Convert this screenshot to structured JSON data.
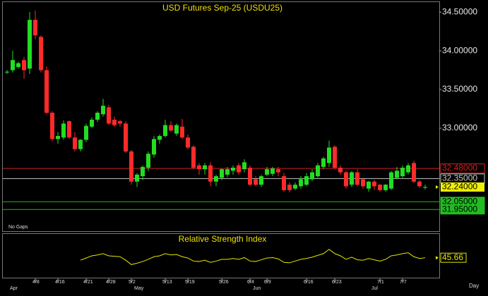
{
  "chart_data": {
    "type": "candlestick",
    "title": "USD Futures Sep-25 (USDU25)",
    "note": "No Gaps",
    "x_unit": "Day",
    "categories": [
      null,
      null,
      null,
      null,
      null,
      "4/8",
      null,
      null,
      null,
      "4/16",
      null,
      null,
      null,
      null,
      "4/21",
      null,
      null,
      null,
      "4/28",
      null,
      null,
      null,
      "5/2",
      null,
      null,
      null,
      null,
      null,
      "5/13",
      null,
      null,
      null,
      "5/19",
      null,
      null,
      null,
      null,
      null,
      "5/26",
      null,
      null,
      null,
      null,
      "6/4",
      null,
      null,
      "6/9",
      null,
      null,
      null,
      null,
      null,
      null,
      "6/16",
      null,
      null,
      null,
      null,
      "6/23",
      null,
      null,
      null,
      null,
      null,
      null,
      null,
      "7/1",
      null,
      null,
      null,
      "7/7",
      null,
      null,
      null,
      null
    ],
    "months": [
      "Apr",
      null,
      null,
      null,
      null,
      null,
      null,
      null,
      null,
      null,
      null,
      null,
      null,
      null,
      null,
      null,
      null,
      null,
      null,
      null,
      null,
      null,
      "May",
      null,
      null,
      null,
      null,
      null,
      null,
      null,
      null,
      null,
      null,
      null,
      null,
      null,
      null,
      null,
      null,
      null,
      null,
      null,
      null,
      "Jun",
      null,
      null,
      null,
      null,
      null,
      null,
      null,
      null,
      null,
      null,
      null,
      null,
      null,
      null,
      null,
      null,
      null,
      null,
      null,
      null,
      "Jul",
      null,
      null,
      null,
      null,
      null,
      null,
      null,
      null,
      null
    ],
    "open": [
      33.72,
      33.75,
      33.79,
      33.88,
      33.77,
      34.4,
      34.18,
      33.75,
      33.2,
      32.86,
      32.88,
      33.09,
      32.88,
      32.73,
      32.85,
      33.02,
      33.11,
      33.18,
      33.27,
      33.11,
      33.09,
      33.06,
      32.7,
      32.31,
      32.38,
      32.49,
      32.66,
      32.85,
      32.9,
      33.04,
      32.93,
      33.02,
      32.88,
      32.76,
      32.52,
      32.47,
      32.52,
      32.31,
      32.36,
      32.4,
      32.45,
      32.52,
      32.47,
      32.49,
      32.34,
      32.27,
      32.4,
      32.41,
      32.47,
      32.38,
      32.27,
      32.22,
      32.25,
      32.27,
      32.34,
      32.38,
      32.5,
      32.55,
      32.76,
      32.49,
      32.43,
      32.27,
      32.43,
      32.34,
      32.22,
      32.31,
      32.27,
      32.2,
      32.22,
      32.36,
      32.38,
      32.43,
      32.55,
      32.31,
      32.23
    ],
    "high": [
      33.75,
      34.0,
      33.86,
      33.92,
      34.5,
      34.52,
      34.2,
      33.8,
      33.22,
      32.95,
      33.1,
      33.1,
      32.95,
      32.86,
      33.06,
      33.14,
      33.22,
      33.38,
      33.3,
      33.15,
      33.11,
      33.09,
      32.72,
      32.42,
      32.52,
      32.7,
      32.9,
      32.92,
      33.11,
      33.09,
      33.06,
      33.12,
      32.92,
      32.78,
      32.55,
      32.55,
      32.56,
      32.4,
      32.48,
      32.5,
      32.52,
      32.55,
      32.6,
      32.52,
      32.38,
      32.4,
      32.5,
      32.5,
      32.5,
      32.42,
      32.3,
      32.3,
      32.38,
      32.42,
      32.47,
      32.55,
      32.63,
      32.84,
      32.78,
      32.52,
      32.45,
      32.45,
      32.47,
      32.36,
      32.32,
      32.33,
      32.28,
      32.28,
      32.45,
      32.5,
      32.52,
      32.55,
      32.58,
      32.33,
      32.27
    ],
    "low": [
      33.7,
      33.72,
      33.77,
      33.64,
      33.7,
      34.15,
      33.72,
      33.18,
      32.83,
      32.8,
      32.85,
      32.86,
      32.7,
      32.7,
      32.82,
      33.0,
      33.08,
      33.15,
      33.04,
      33.02,
      33.02,
      32.68,
      32.27,
      32.24,
      32.33,
      32.45,
      32.62,
      32.8,
      32.88,
      32.95,
      32.9,
      32.86,
      32.73,
      32.47,
      32.4,
      32.4,
      32.25,
      32.25,
      32.33,
      32.37,
      32.4,
      32.4,
      32.43,
      32.25,
      32.25,
      32.24,
      32.38,
      32.38,
      32.38,
      32.18,
      32.17,
      32.2,
      32.22,
      32.25,
      32.32,
      32.36,
      32.47,
      32.5,
      32.47,
      32.4,
      32.22,
      32.24,
      32.25,
      32.22,
      32.18,
      32.2,
      32.18,
      32.18,
      32.2,
      32.34,
      32.36,
      32.4,
      32.29,
      32.23,
      32.21
    ],
    "close": [
      33.73,
      33.88,
      33.84,
      33.75,
      34.4,
      34.2,
      33.75,
      33.2,
      32.86,
      32.9,
      33.06,
      32.88,
      32.73,
      32.85,
      33.03,
      33.11,
      33.2,
      33.29,
      33.06,
      33.04,
      33.06,
      32.7,
      32.31,
      32.4,
      32.5,
      32.67,
      32.86,
      32.9,
      33.04,
      32.97,
      33.04,
      32.88,
      32.75,
      32.49,
      32.47,
      32.52,
      32.31,
      32.38,
      32.47,
      32.47,
      32.49,
      32.43,
      32.56,
      32.27,
      32.27,
      32.38,
      32.47,
      32.48,
      32.43,
      32.2,
      32.2,
      32.27,
      32.34,
      32.38,
      32.43,
      32.52,
      32.61,
      32.75,
      32.49,
      32.43,
      32.25,
      32.43,
      32.27,
      32.25,
      32.31,
      32.25,
      32.2,
      32.27,
      32.43,
      32.45,
      32.49,
      32.52,
      32.31,
      32.25,
      32.24
    ],
    "up_color": "#22dd22",
    "down_color": "#ff2a2a",
    "ylim": [
      31.67,
      34.62
    ],
    "yticks": [
      {
        "value": 34.5,
        "label": "34.50000"
      },
      {
        "value": 34.0,
        "label": "34.00000"
      },
      {
        "value": 33.5,
        "label": "33.50000"
      },
      {
        "value": 33.0,
        "label": "33.00000"
      }
    ],
    "levels": [
      {
        "value": 32.48,
        "label": "32.48000",
        "color": "#d42020"
      },
      {
        "value": 32.35,
        "label": "32.35000",
        "color": "#c8c8c8"
      },
      {
        "value": 32.05,
        "label": "32.05000",
        "color": "#22bb22"
      },
      {
        "value": 31.95,
        "label": "31.95000",
        "color": "#22bb22"
      }
    ],
    "last_price": {
      "value": 32.24,
      "label": "32.24000",
      "color": "#f0f000"
    },
    "rsi": {
      "title": "Relative Strength Index",
      "color": "#e6e600",
      "ylim": [
        0,
        100
      ],
      "values": [
        null,
        null,
        null,
        null,
        null,
        null,
        null,
        null,
        null,
        null,
        null,
        null,
        null,
        40,
        45,
        50,
        52,
        55,
        50,
        49,
        48,
        40,
        30,
        33,
        37,
        42,
        48,
        50,
        55,
        52,
        53,
        48,
        45,
        38,
        37,
        40,
        35,
        38,
        42,
        42,
        44,
        42,
        46,
        38,
        37,
        41,
        45,
        46,
        43,
        35,
        34,
        38,
        42,
        44,
        47,
        51,
        55,
        65,
        55,
        50,
        42,
        47,
        41,
        40,
        44,
        41,
        38,
        42,
        50,
        52,
        55,
        57,
        48,
        44,
        45.66
      ]
    }
  }
}
